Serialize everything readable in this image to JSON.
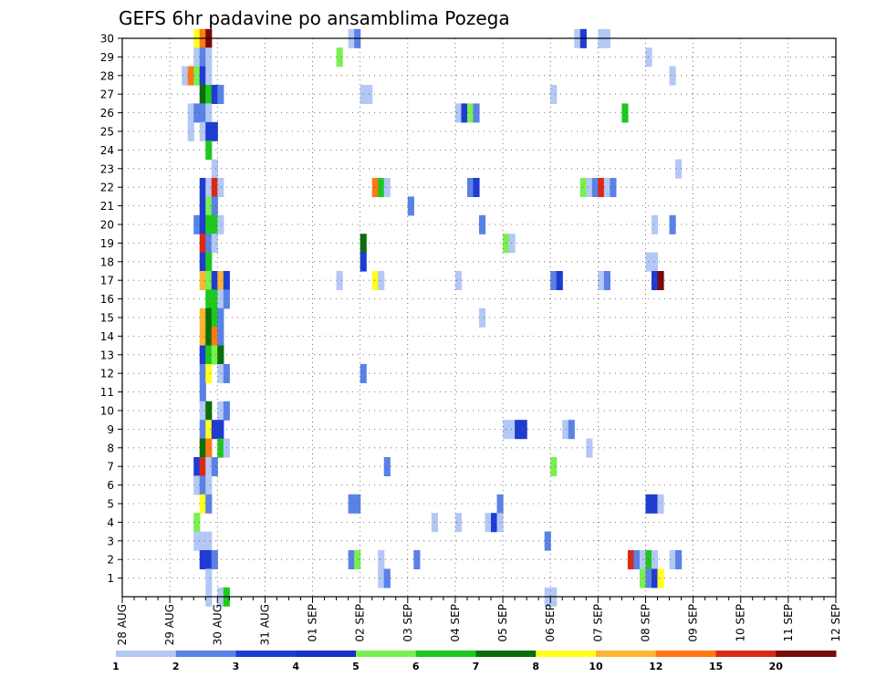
{
  "chart_data": {
    "type": "heatmap",
    "title": "GEFS 6hr padavine po ansamblima Pozega",
    "xlabel": "",
    "ylabel": "",
    "x_tick_labels": [
      "28 AUG",
      "29 AUG",
      "30 AUG",
      "31 AUG",
      "01 SEP",
      "02 SEP",
      "03 SEP",
      "04 SEP",
      "05 SEP",
      "06 SEP",
      "07 SEP",
      "08 SEP",
      "09 SEP",
      "10 SEP",
      "11 SEP",
      "12 SEP"
    ],
    "x_range_days": [
      0,
      15
    ],
    "x_step_hours": 6,
    "y_tick_labels": [
      "1",
      "2",
      "3",
      "4",
      "5",
      "6",
      "7",
      "8",
      "9",
      "10",
      "11",
      "12",
      "13",
      "14",
      "15",
      "16",
      "17",
      "18",
      "19",
      "20",
      "21",
      "22",
      "23",
      "24",
      "25",
      "26",
      "27",
      "28",
      "29",
      "30"
    ],
    "y_range": [
      0,
      30
    ],
    "grid": true,
    "legend": {
      "placement": "bottom",
      "labels": [
        "1",
        "2",
        "3",
        "4",
        "5",
        "6",
        "7",
        "8",
        "10",
        "12",
        "15",
        "20"
      ],
      "colors": [
        "#b4c8f5",
        "#5a82e6",
        "#1e3cd2",
        "#1432c8",
        "#78f050",
        "#1ec81e",
        "#0a6e0a",
        "#ffff1e",
        "#ffb432",
        "#ff7814",
        "#dc2814",
        "#780a0a"
      ]
    },
    "cells": [
      {
        "m": 30,
        "t": [
          [
            12,
            "c8"
          ],
          [
            13,
            "c10"
          ],
          [
            14,
            "c12"
          ],
          [
            38,
            "c1"
          ],
          [
            39,
            "c2"
          ],
          [
            76,
            "c1"
          ],
          [
            77,
            "c3"
          ],
          [
            80,
            "c1"
          ],
          [
            81,
            "c1"
          ]
        ]
      },
      {
        "m": 29,
        "t": [
          [
            12,
            "c1"
          ],
          [
            13,
            "c2"
          ],
          [
            14,
            "c1"
          ],
          [
            36,
            "c5"
          ],
          [
            88,
            "c1"
          ]
        ]
      },
      {
        "m": 28,
        "t": [
          [
            10,
            "c1"
          ],
          [
            11,
            "c10"
          ],
          [
            12,
            "c5"
          ],
          [
            13,
            "c3"
          ],
          [
            14,
            "c1"
          ],
          [
            92,
            "c1"
          ]
        ]
      },
      {
        "m": 27,
        "t": [
          [
            13,
            "c7"
          ],
          [
            14,
            "c6"
          ],
          [
            15,
            "c3"
          ],
          [
            16,
            "c2"
          ],
          [
            40,
            "c1"
          ],
          [
            41,
            "c1"
          ],
          [
            72,
            "c1"
          ]
        ]
      },
      {
        "m": 26,
        "t": [
          [
            11,
            "c1"
          ],
          [
            12,
            "c2"
          ],
          [
            13,
            "c2"
          ],
          [
            14,
            "c1"
          ],
          [
            56,
            "c1"
          ],
          [
            57,
            "c3"
          ],
          [
            58,
            "c5"
          ],
          [
            59,
            "c2"
          ],
          [
            84,
            "c6"
          ]
        ]
      },
      {
        "m": 25,
        "t": [
          [
            11,
            "c1"
          ],
          [
            13,
            "c1"
          ],
          [
            14,
            "c3"
          ],
          [
            15,
            "c3"
          ]
        ]
      },
      {
        "m": 24,
        "t": [
          [
            14,
            "c6"
          ]
        ]
      },
      {
        "m": 23,
        "t": [
          [
            15,
            "c1"
          ],
          [
            93,
            "c1"
          ]
        ]
      },
      {
        "m": 22,
        "t": [
          [
            13,
            "c3"
          ],
          [
            14,
            "c1"
          ],
          [
            15,
            "c11"
          ],
          [
            16,
            "c1"
          ],
          [
            42,
            "c10"
          ],
          [
            43,
            "c6"
          ],
          [
            44,
            "c1"
          ],
          [
            58,
            "c2"
          ],
          [
            59,
            "c3"
          ],
          [
            77,
            "c5"
          ],
          [
            78,
            "c1"
          ],
          [
            79,
            "c2"
          ],
          [
            80,
            "c11"
          ],
          [
            81,
            "c1"
          ],
          [
            82,
            "c2"
          ]
        ]
      },
      {
        "m": 21,
        "t": [
          [
            13,
            "c3"
          ],
          [
            14,
            "c5"
          ],
          [
            15,
            "c2"
          ],
          [
            48,
            "c2"
          ]
        ]
      },
      {
        "m": 20,
        "t": [
          [
            12,
            "c2"
          ],
          [
            13,
            "c3"
          ],
          [
            14,
            "c6"
          ],
          [
            15,
            "c6"
          ],
          [
            16,
            "c1"
          ],
          [
            60,
            "c2"
          ],
          [
            89,
            "c1"
          ],
          [
            92,
            "c2"
          ]
        ]
      },
      {
        "m": 19,
        "t": [
          [
            13,
            "c11"
          ],
          [
            14,
            "c2"
          ],
          [
            15,
            "c1"
          ],
          [
            40,
            "c7"
          ],
          [
            64,
            "c5"
          ],
          [
            65,
            "c1"
          ]
        ]
      },
      {
        "m": 18,
        "t": [
          [
            13,
            "c3"
          ],
          [
            14,
            "c6"
          ],
          [
            40,
            "c3"
          ],
          [
            88,
            "c1"
          ],
          [
            89,
            "c1"
          ]
        ]
      },
      {
        "m": 17,
        "t": [
          [
            13,
            "c9"
          ],
          [
            14,
            "c5"
          ],
          [
            15,
            "c3"
          ],
          [
            16,
            "c9"
          ],
          [
            17,
            "c3"
          ],
          [
            36,
            "c1"
          ],
          [
            42,
            "c8"
          ],
          [
            43,
            "c1"
          ],
          [
            56,
            "c1"
          ],
          [
            72,
            "c2"
          ],
          [
            73,
            "c3"
          ],
          [
            80,
            "c1"
          ],
          [
            81,
            "c2"
          ],
          [
            89,
            "c3"
          ],
          [
            90,
            "c12"
          ]
        ]
      },
      {
        "m": 16,
        "t": [
          [
            14,
            "c6"
          ],
          [
            15,
            "c6"
          ],
          [
            16,
            "c1"
          ],
          [
            17,
            "c2"
          ]
        ]
      },
      {
        "m": 15,
        "t": [
          [
            13,
            "c9"
          ],
          [
            14,
            "c7"
          ],
          [
            15,
            "c6"
          ],
          [
            16,
            "c2"
          ],
          [
            60,
            "c1"
          ]
        ]
      },
      {
        "m": 14,
        "t": [
          [
            13,
            "c9"
          ],
          [
            14,
            "c7"
          ],
          [
            15,
            "c10"
          ],
          [
            16,
            "c2"
          ]
        ]
      },
      {
        "m": 13,
        "t": [
          [
            13,
            "c3"
          ],
          [
            14,
            "c6"
          ],
          [
            15,
            "c5"
          ],
          [
            16,
            "c7"
          ]
        ]
      },
      {
        "m": 12,
        "t": [
          [
            13,
            "c2"
          ],
          [
            14,
            "c8"
          ],
          [
            16,
            "c1"
          ],
          [
            17,
            "c2"
          ],
          [
            40,
            "c2"
          ]
        ]
      },
      {
        "m": 11,
        "t": [
          [
            13,
            "c2"
          ]
        ]
      },
      {
        "m": 10,
        "t": [
          [
            13,
            "c1"
          ],
          [
            14,
            "c7"
          ],
          [
            16,
            "c1"
          ],
          [
            17,
            "c2"
          ]
        ]
      },
      {
        "m": 9,
        "t": [
          [
            13,
            "c2"
          ],
          [
            14,
            "c8"
          ],
          [
            15,
            "c3"
          ],
          [
            16,
            "c3"
          ],
          [
            64,
            "c1"
          ],
          [
            65,
            "c1"
          ],
          [
            66,
            "c3"
          ],
          [
            67,
            "c3"
          ],
          [
            74,
            "c1"
          ],
          [
            75,
            "c2"
          ]
        ]
      },
      {
        "m": 8,
        "t": [
          [
            13,
            "c7"
          ],
          [
            14,
            "c10"
          ],
          [
            16,
            "c6"
          ],
          [
            17,
            "c1"
          ],
          [
            78,
            "c1"
          ]
        ]
      },
      {
        "m": 7,
        "t": [
          [
            12,
            "c3"
          ],
          [
            13,
            "c11"
          ],
          [
            14,
            "c1"
          ],
          [
            15,
            "c2"
          ],
          [
            44,
            "c2"
          ],
          [
            72,
            "c5"
          ]
        ]
      },
      {
        "m": 6,
        "t": [
          [
            12,
            "c1"
          ],
          [
            13,
            "c2"
          ],
          [
            14,
            "c1"
          ]
        ]
      },
      {
        "m": 5,
        "t": [
          [
            13,
            "c8"
          ],
          [
            14,
            "c2"
          ],
          [
            38,
            "c2"
          ],
          [
            39,
            "c2"
          ],
          [
            63,
            "c2"
          ],
          [
            88,
            "c3"
          ],
          [
            89,
            "c3"
          ],
          [
            90,
            "c1"
          ]
        ]
      },
      {
        "m": 4,
        "t": [
          [
            12,
            "c5"
          ],
          [
            52,
            "c1"
          ],
          [
            56,
            "c1"
          ],
          [
            61,
            "c1"
          ],
          [
            62,
            "c3"
          ],
          [
            63,
            "c1"
          ]
        ]
      },
      {
        "m": 3,
        "t": [
          [
            12,
            "c1"
          ],
          [
            13,
            "c1"
          ],
          [
            14,
            "c1"
          ],
          [
            71,
            "c2"
          ]
        ]
      },
      {
        "m": 2,
        "t": [
          [
            13,
            "c3"
          ],
          [
            14,
            "c3"
          ],
          [
            15,
            "c2"
          ],
          [
            38,
            "c2"
          ],
          [
            39,
            "c5"
          ],
          [
            43,
            "c1"
          ],
          [
            49,
            "c2"
          ],
          [
            85,
            "c11"
          ],
          [
            86,
            "c2"
          ],
          [
            87,
            "c1"
          ],
          [
            88,
            "c6"
          ],
          [
            89,
            "c1"
          ],
          [
            92,
            "c1"
          ],
          [
            93,
            "c2"
          ]
        ]
      },
      {
        "m": 1,
        "t": [
          [
            14,
            "c1"
          ],
          [
            43,
            "c1"
          ],
          [
            44,
            "c2"
          ],
          [
            87,
            "c5"
          ],
          [
            88,
            "c2"
          ],
          [
            89,
            "c3"
          ],
          [
            90,
            "c8"
          ]
        ]
      },
      {
        "m": 0,
        "t": [
          [
            14,
            "c1"
          ],
          [
            16,
            "c1"
          ],
          [
            17,
            "c6"
          ],
          [
            71,
            "c1"
          ],
          [
            72,
            "c1"
          ]
        ]
      }
    ]
  }
}
